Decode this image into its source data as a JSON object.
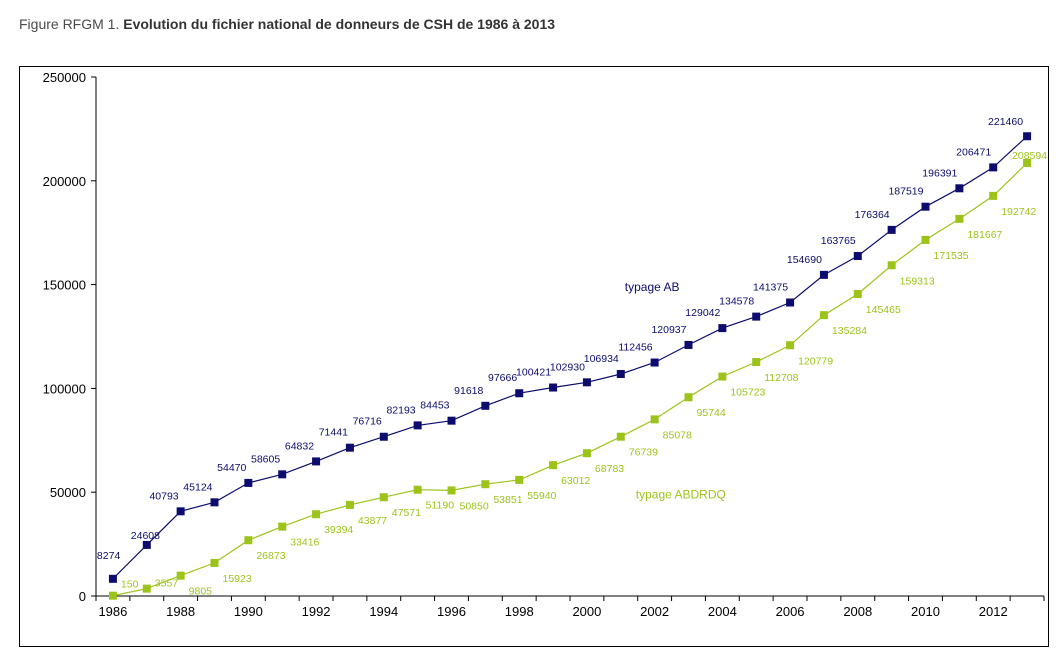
{
  "figure": {
    "label": "Figure RFGM 1.",
    "title": "Evolution du fichier national de donneurs de CSH de 1986 à 2013"
  },
  "colors": {
    "ab": "#0c0c6e",
    "abdrdq": "#9cc31a"
  },
  "chart_data": {
    "type": "line",
    "title": "Evolution du fichier national de donneurs de CSH de 1986 à 2013",
    "xlabel": "",
    "ylabel": "",
    "x": [
      1986,
      1987,
      1988,
      1989,
      1990,
      1991,
      1992,
      1993,
      1994,
      1995,
      1996,
      1997,
      1998,
      1999,
      2000,
      2001,
      2002,
      2003,
      2004,
      2005,
      2006,
      2007,
      2008,
      2009,
      2010,
      2011,
      2012,
      2013
    ],
    "x_tick_labels": [
      "1986",
      "1988",
      "1990",
      "1992",
      "1994",
      "1996",
      "1998",
      "2000",
      "2002",
      "2004",
      "2006",
      "2008",
      "2010",
      "2012"
    ],
    "ylim": [
      0,
      250000
    ],
    "y_ticks": [
      0,
      50000,
      100000,
      150000,
      200000,
      250000
    ],
    "y_tick_labels": [
      "0",
      "50000",
      "100000",
      "150000",
      "200000",
      "250000"
    ],
    "grid": false,
    "series": [
      {
        "name": "typage AB",
        "values": [
          8274,
          24608,
          40793,
          45124,
          54470,
          58605,
          64832,
          71441,
          76716,
          82193,
          84453,
          91618,
          97666,
          100421,
          102930,
          106934,
          112456,
          120937,
          129042,
          134578,
          141375,
          154690,
          163765,
          176364,
          187519,
          196391,
          206471,
          221460
        ],
        "labels": [
          "8274",
          "24608",
          "40793",
          "45124",
          "54470",
          "58605",
          "64832",
          "71441",
          "76716",
          "82193",
          "84453",
          "91618",
          "97666",
          "100421",
          "102930",
          "106934",
          "112456",
          "120937",
          "129042",
          "134578",
          "141375",
          "154690",
          "163765",
          "176364",
          "187519",
          "196391",
          "206471",
          "221460"
        ]
      },
      {
        "name": "typage ABDRDQ",
        "values": [
          150,
          3557,
          9805,
          15923,
          26873,
          33416,
          39394,
          43877,
          47571,
          51190,
          50850,
          53851,
          55940,
          63012,
          68783,
          76739,
          85078,
          95744,
          105723,
          112708,
          120779,
          135284,
          145465,
          159313,
          171535,
          181667,
          192742,
          208594
        ],
        "labels": [
          "150",
          "3557",
          "9805",
          "15923",
          "26873",
          "33416",
          "39394",
          "43877",
          "47571",
          "51190",
          "50850",
          "53851",
          "55940",
          "63012",
          "68783",
          "76739",
          "85078",
          "95744",
          "105723",
          "112708",
          "120779",
          "135284",
          "145465",
          "159313",
          "171535",
          "181667",
          "192742",
          "208594"
        ]
      }
    ]
  }
}
